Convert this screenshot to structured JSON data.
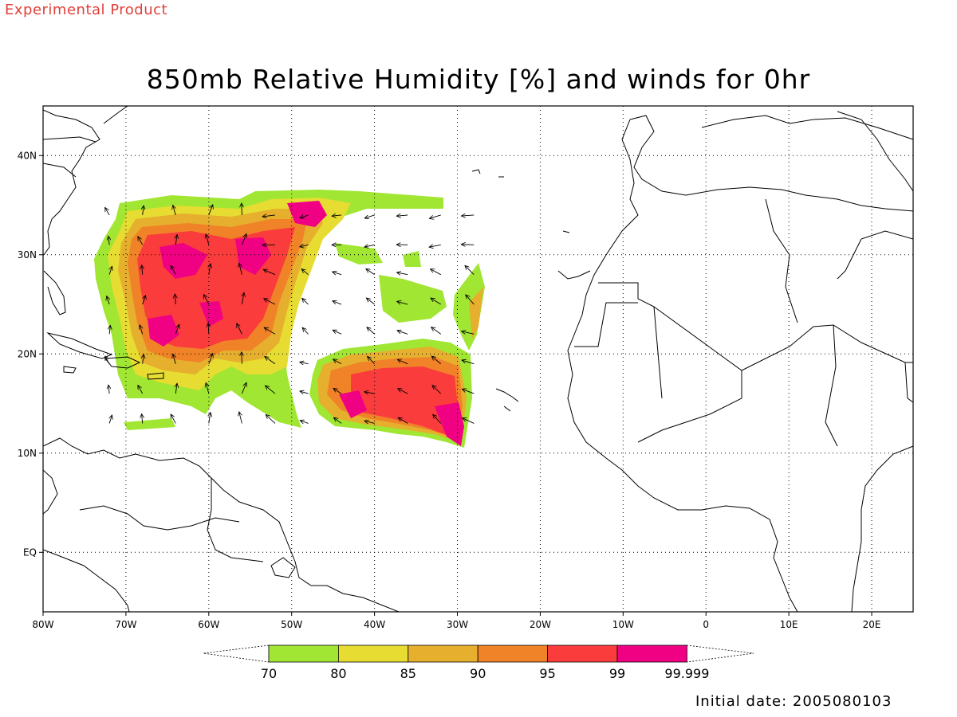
{
  "header": {
    "product_tag": "Experimental Product",
    "title": "850mb Relative Humidity [%] and winds for 0hr"
  },
  "footer": {
    "initial_date": "Initial date: 2005080103"
  },
  "map": {
    "extent": {
      "lon_min": -80,
      "lon_max": 25,
      "lat_min": -6,
      "lat_max": 45
    },
    "lat_ticks": [
      {
        "value": 40,
        "label": "40N"
      },
      {
        "value": 30,
        "label": "30N"
      },
      {
        "value": 20,
        "label": "20N"
      },
      {
        "value": 10,
        "label": "10N"
      },
      {
        "value": 0,
        "label": "EQ"
      }
    ],
    "lon_ticks": [
      {
        "value": -80,
        "label": "80W"
      },
      {
        "value": -70,
        "label": "70W"
      },
      {
        "value": -60,
        "label": "60W"
      },
      {
        "value": -50,
        "label": "50W"
      },
      {
        "value": -40,
        "label": "40W"
      },
      {
        "value": -30,
        "label": "30W"
      },
      {
        "value": -20,
        "label": "20W"
      },
      {
        "value": -10,
        "label": "10W"
      },
      {
        "value": 0,
        "label": "0"
      },
      {
        "value": 10,
        "label": "10E"
      },
      {
        "value": 20,
        "label": "20E"
      }
    ],
    "colorbar": {
      "labels": [
        "70",
        "80",
        "85",
        "90",
        "95",
        "99",
        "99.999"
      ],
      "colors": [
        "#a0e632",
        "#e6dc32",
        "#e6af2d",
        "#f08228",
        "#fa3c3c",
        "#f00082"
      ]
    }
  }
}
